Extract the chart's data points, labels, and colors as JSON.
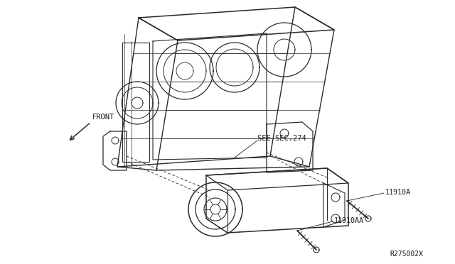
{
  "bg_color": "#ffffff",
  "diagram_id": "R275002X",
  "labels": {
    "front_label": "FRONT",
    "see_sec": "SEE SEC.274",
    "part1": "11910A",
    "part2": "11910AA"
  },
  "line_color": "#2a2a2a",
  "text_color": "#1a1a1a",
  "fig_width": 6.4,
  "fig_height": 3.72,
  "dpi": 100
}
